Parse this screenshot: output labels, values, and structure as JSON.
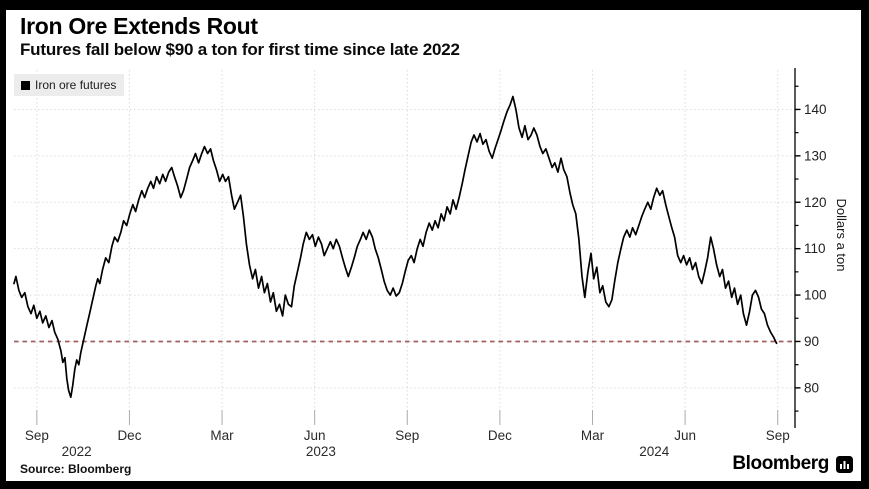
{
  "header": {
    "title": "Iron Ore Extends Rout",
    "subtitle": "Futures fall below $90 a ton for first time since late 2022"
  },
  "legend": {
    "label": "Iron ore futures",
    "swatch_color": "#000000",
    "background": "#ececec"
  },
  "footer": {
    "source": "Source: Bloomberg",
    "brand": "Bloomberg",
    "brand_icon": "bloomberg-terminal-icon"
  },
  "chart_data": {
    "type": "line",
    "title": "Iron Ore Extends Rout",
    "subtitle": "Futures fall below $90 a ton for first time since late 2022",
    "ylabel": "Dollars a ton",
    "xlabel": "",
    "legend_position": "top-left",
    "grid": {
      "show": true,
      "color": "#dcdcdc",
      "style": "dotted"
    },
    "axis_color": "#000000",
    "tick_label_color": "#222222",
    "ylim": [
      72,
      148.5
    ],
    "xlim": [
      0.26,
      25.56
    ],
    "t_unit": "months since 2022-08-01",
    "y_ticks_major": [
      80,
      90,
      100,
      110,
      120,
      130,
      140
    ],
    "y_ticks_minor": [
      75,
      85,
      95,
      105,
      115,
      125,
      135,
      145
    ],
    "x_ticks": [
      {
        "t": 1,
        "label": "Sep"
      },
      {
        "t": 4,
        "label": "Dec"
      },
      {
        "t": 7,
        "label": "Mar"
      },
      {
        "t": 10,
        "label": "Jun"
      },
      {
        "t": 13,
        "label": "Sep"
      },
      {
        "t": 16,
        "label": "Dec"
      },
      {
        "t": 19,
        "label": "Mar"
      },
      {
        "t": 22,
        "label": "Jun"
      },
      {
        "t": 25,
        "label": "Sep"
      }
    ],
    "year_labels": [
      {
        "t": 2.29,
        "label": "2022"
      },
      {
        "t": 10.2,
        "label": "2023"
      },
      {
        "t": 21.0,
        "label": "2024"
      }
    ],
    "ref_line": {
      "value": 90,
      "color": "#a25f5f",
      "style": "dashed"
    },
    "series": [
      {
        "name": "Iron ore futures",
        "color": "#000000",
        "points": [
          [
            0.26,
            102.5
          ],
          [
            0.32,
            104
          ],
          [
            0.42,
            101
          ],
          [
            0.51,
            99.5
          ],
          [
            0.61,
            100.5
          ],
          [
            0.71,
            97.5
          ],
          [
            0.81,
            96
          ],
          [
            0.9,
            97.8
          ],
          [
            1,
            95
          ],
          [
            1.1,
            96.5
          ],
          [
            1.19,
            94
          ],
          [
            1.29,
            95.5
          ],
          [
            1.39,
            93
          ],
          [
            1.49,
            94.5
          ],
          [
            1.58,
            92
          ],
          [
            1.68,
            90.5
          ],
          [
            1.78,
            88
          ],
          [
            1.84,
            85.5
          ],
          [
            1.91,
            86.5
          ],
          [
            1.97,
            82
          ],
          [
            2.03,
            79.5
          ],
          [
            2.1,
            78
          ],
          [
            2.16,
            80.5
          ],
          [
            2.23,
            84
          ],
          [
            2.29,
            86
          ],
          [
            2.36,
            85
          ],
          [
            2.42,
            87.5
          ],
          [
            2.52,
            90.5
          ],
          [
            2.62,
            93.5
          ],
          [
            2.71,
            96
          ],
          [
            2.81,
            99
          ],
          [
            2.91,
            102
          ],
          [
            2.97,
            103.5
          ],
          [
            3.04,
            102.5
          ],
          [
            3.13,
            105.5
          ],
          [
            3.23,
            108
          ],
          [
            3.33,
            107
          ],
          [
            3.43,
            110.5
          ],
          [
            3.52,
            112.5
          ],
          [
            3.62,
            111.5
          ],
          [
            3.72,
            113.5
          ],
          [
            3.81,
            116
          ],
          [
            3.91,
            115
          ],
          [
            4.01,
            117.5
          ],
          [
            4.11,
            119.5
          ],
          [
            4.2,
            118
          ],
          [
            4.3,
            120.5
          ],
          [
            4.4,
            122.5
          ],
          [
            4.49,
            121
          ],
          [
            4.59,
            123
          ],
          [
            4.69,
            124.5
          ],
          [
            4.78,
            123
          ],
          [
            4.88,
            125.5
          ],
          [
            4.98,
            124
          ],
          [
            5.08,
            126
          ],
          [
            5.17,
            124.5
          ],
          [
            5.27,
            126.5
          ],
          [
            5.37,
            127.5
          ],
          [
            5.46,
            125.5
          ],
          [
            5.56,
            123.5
          ],
          [
            5.66,
            121
          ],
          [
            5.75,
            122.5
          ],
          [
            5.85,
            125
          ],
          [
            5.95,
            127.5
          ],
          [
            6.05,
            129
          ],
          [
            6.14,
            130.5
          ],
          [
            6.24,
            128.5
          ],
          [
            6.34,
            130.5
          ],
          [
            6.43,
            132
          ],
          [
            6.53,
            130.5
          ],
          [
            6.63,
            131.5
          ],
          [
            6.72,
            129
          ],
          [
            6.82,
            127
          ],
          [
            6.92,
            124.5
          ],
          [
            7.02,
            126
          ],
          [
            7.11,
            124.5
          ],
          [
            7.21,
            125.5
          ],
          [
            7.31,
            121.5
          ],
          [
            7.4,
            118.5
          ],
          [
            7.5,
            120
          ],
          [
            7.6,
            121.5
          ],
          [
            7.69,
            117
          ],
          [
            7.79,
            111
          ],
          [
            7.89,
            106.5
          ],
          [
            7.99,
            103.5
          ],
          [
            8.08,
            105.5
          ],
          [
            8.18,
            101.5
          ],
          [
            8.28,
            104
          ],
          [
            8.37,
            100.5
          ],
          [
            8.47,
            102.5
          ],
          [
            8.57,
            98.5
          ],
          [
            8.66,
            100.5
          ],
          [
            8.76,
            96.5
          ],
          [
            8.86,
            98
          ],
          [
            8.96,
            95.5
          ],
          [
            9.05,
            100
          ],
          [
            9.15,
            98
          ],
          [
            9.25,
            97.5
          ],
          [
            9.34,
            102
          ],
          [
            9.44,
            105
          ],
          [
            9.54,
            108
          ],
          [
            9.63,
            111
          ],
          [
            9.73,
            113.5
          ],
          [
            9.83,
            112
          ],
          [
            9.93,
            113
          ],
          [
            10.02,
            110.5
          ],
          [
            10.12,
            112.5
          ],
          [
            10.22,
            111
          ],
          [
            10.31,
            108.5
          ],
          [
            10.41,
            110
          ],
          [
            10.51,
            111.5
          ],
          [
            10.6,
            110
          ],
          [
            10.7,
            112
          ],
          [
            10.8,
            110.5
          ],
          [
            10.9,
            108
          ],
          [
            10.99,
            106
          ],
          [
            11.09,
            104
          ],
          [
            11.19,
            106
          ],
          [
            11.28,
            108
          ],
          [
            11.38,
            110.5
          ],
          [
            11.48,
            112
          ],
          [
            11.57,
            113.5
          ],
          [
            11.67,
            112
          ],
          [
            11.77,
            114
          ],
          [
            11.87,
            112.5
          ],
          [
            11.96,
            110
          ],
          [
            12.06,
            108
          ],
          [
            12.16,
            105.5
          ],
          [
            12.25,
            103
          ],
          [
            12.35,
            101
          ],
          [
            12.45,
            100
          ],
          [
            12.54,
            101.5
          ],
          [
            12.64,
            99.8
          ],
          [
            12.74,
            100.5
          ],
          [
            12.84,
            102.5
          ],
          [
            12.93,
            105
          ],
          [
            13.03,
            107.5
          ],
          [
            13.13,
            108.5
          ],
          [
            13.22,
            107
          ],
          [
            13.32,
            110
          ],
          [
            13.42,
            112
          ],
          [
            13.51,
            110.5
          ],
          [
            13.61,
            113.5
          ],
          [
            13.71,
            115.5
          ],
          [
            13.81,
            114
          ],
          [
            13.9,
            116
          ],
          [
            14,
            114.5
          ],
          [
            14.1,
            117.5
          ],
          [
            14.19,
            116
          ],
          [
            14.29,
            119
          ],
          [
            14.39,
            117.5
          ],
          [
            14.48,
            120.5
          ],
          [
            14.58,
            118.5
          ],
          [
            14.68,
            121
          ],
          [
            14.78,
            124
          ],
          [
            14.87,
            127
          ],
          [
            14.97,
            130
          ],
          [
            15.07,
            133
          ],
          [
            15.16,
            134.5
          ],
          [
            15.26,
            133
          ],
          [
            15.36,
            134.8
          ],
          [
            15.45,
            132.5
          ],
          [
            15.55,
            133.5
          ],
          [
            15.65,
            131
          ],
          [
            15.75,
            129.5
          ],
          [
            15.84,
            131.5
          ],
          [
            15.94,
            133.5
          ],
          [
            16.04,
            135.5
          ],
          [
            16.13,
            137.5
          ],
          [
            16.23,
            139.5
          ],
          [
            16.33,
            141
          ],
          [
            16.42,
            142.8
          ],
          [
            16.52,
            140
          ],
          [
            16.62,
            136
          ],
          [
            16.72,
            134
          ],
          [
            16.81,
            136.5
          ],
          [
            16.91,
            133.5
          ],
          [
            17.01,
            134.5
          ],
          [
            17.1,
            136
          ],
          [
            17.2,
            134.5
          ],
          [
            17.3,
            132
          ],
          [
            17.39,
            130.5
          ],
          [
            17.49,
            131.5
          ],
          [
            17.59,
            129.5
          ],
          [
            17.69,
            127.5
          ],
          [
            17.78,
            128.5
          ],
          [
            17.88,
            126.5
          ],
          [
            17.98,
            129.5
          ],
          [
            18.07,
            127
          ],
          [
            18.17,
            125.5
          ],
          [
            18.27,
            122
          ],
          [
            18.36,
            119.5
          ],
          [
            18.46,
            117.5
          ],
          [
            18.56,
            112
          ],
          [
            18.66,
            104
          ],
          [
            18.75,
            99.5
          ],
          [
            18.85,
            105
          ],
          [
            18.95,
            109
          ],
          [
            19.04,
            103.5
          ],
          [
            19.14,
            106
          ],
          [
            19.24,
            100.5
          ],
          [
            19.33,
            102
          ],
          [
            19.43,
            98.5
          ],
          [
            19.53,
            97.5
          ],
          [
            19.63,
            99
          ],
          [
            19.72,
            103
          ],
          [
            19.82,
            107
          ],
          [
            19.92,
            110
          ],
          [
            20.01,
            112.5
          ],
          [
            20.11,
            114
          ],
          [
            20.21,
            112.5
          ],
          [
            20.3,
            114.5
          ],
          [
            20.4,
            113
          ],
          [
            20.5,
            115
          ],
          [
            20.6,
            117
          ],
          [
            20.69,
            118.5
          ],
          [
            20.79,
            120
          ],
          [
            20.89,
            118.5
          ],
          [
            20.98,
            121
          ],
          [
            21.08,
            123
          ],
          [
            21.18,
            121.5
          ],
          [
            21.27,
            122.5
          ],
          [
            21.37,
            119.5
          ],
          [
            21.47,
            117
          ],
          [
            21.57,
            114.5
          ],
          [
            21.66,
            112.5
          ],
          [
            21.76,
            108.5
          ],
          [
            21.86,
            107
          ],
          [
            21.95,
            108.5
          ],
          [
            22.05,
            106.5
          ],
          [
            22.15,
            108
          ],
          [
            22.24,
            105.5
          ],
          [
            22.34,
            107
          ],
          [
            22.44,
            104
          ],
          [
            22.54,
            102.5
          ],
          [
            22.63,
            105
          ],
          [
            22.73,
            108
          ],
          [
            22.83,
            112.5
          ],
          [
            22.92,
            110
          ],
          [
            23.02,
            106.5
          ],
          [
            23.12,
            104
          ],
          [
            23.21,
            105.5
          ],
          [
            23.31,
            101.5
          ],
          [
            23.41,
            103
          ],
          [
            23.51,
            99.5
          ],
          [
            23.6,
            101.5
          ],
          [
            23.7,
            98
          ],
          [
            23.8,
            100
          ],
          [
            23.89,
            96
          ],
          [
            23.99,
            93.5
          ],
          [
            24.09,
            96.5
          ],
          [
            24.18,
            100
          ],
          [
            24.28,
            101
          ],
          [
            24.38,
            99.5
          ],
          [
            24.47,
            97
          ],
          [
            24.57,
            96
          ],
          [
            24.67,
            93.5
          ],
          [
            24.77,
            92
          ],
          [
            24.86,
            91
          ],
          [
            24.96,
            89.6
          ]
        ]
      }
    ]
  }
}
